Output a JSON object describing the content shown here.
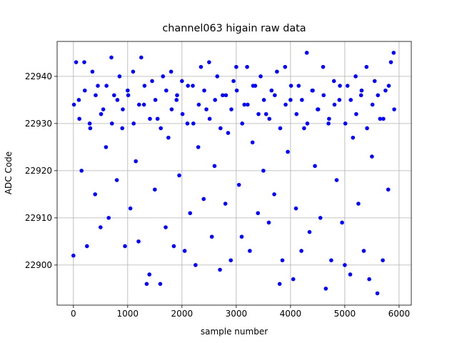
{
  "chart_data": {
    "type": "scatter",
    "title": "channel063 higain raw data",
    "x_label": "sample number",
    "y_label": "ADC Code",
    "xlim": [
      -300,
      6225
    ],
    "ylim": [
      22891.5,
      22947.4
    ],
    "xticks": [
      0,
      1000,
      2000,
      3000,
      4000,
      5000,
      6000
    ],
    "yticks": [
      22900,
      22910,
      22920,
      22930,
      22940
    ],
    "grid": true,
    "color": "#0000ff",
    "x": [
      0,
      50,
      100,
      150,
      200,
      250,
      300,
      350,
      400,
      450,
      500,
      550,
      600,
      650,
      700,
      750,
      800,
      850,
      900,
      950,
      1000,
      1050,
      1100,
      1150,
      1200,
      1250,
      1300,
      1350,
      1400,
      1450,
      1500,
      1550,
      1600,
      1650,
      1700,
      1750,
      1800,
      1850,
      1900,
      1950,
      2000,
      2050,
      2100,
      2150,
      2200,
      2250,
      2300,
      2350,
      2400,
      2450,
      2500,
      2550,
      2600,
      2650,
      2700,
      2750,
      2800,
      2850,
      2900,
      2950,
      3000,
      3050,
      3100,
      3150,
      3200,
      3250,
      3300,
      3350,
      3400,
      3450,
      3500,
      3550,
      3600,
      3650,
      3700,
      3750,
      3800,
      3850,
      3900,
      3950,
      4000,
      4050,
      4100,
      4150,
      4200,
      4250,
      4300,
      4350,
      4400,
      4450,
      4500,
      4550,
      4600,
      4650,
      4700,
      4750,
      4800,
      4850,
      4900,
      4950,
      5000,
      5050,
      5100,
      5150,
      5200,
      5250,
      5300,
      5350,
      5400,
      5450,
      5500,
      5550,
      5600,
      5650,
      5700,
      5750,
      5800,
      5850,
      5900,
      10,
      110,
      210,
      310,
      410,
      510,
      610,
      710,
      810,
      910,
      1010,
      1110,
      1210,
      1310,
      1410,
      1510,
      1610,
      1710,
      1810,
      1910,
      2010,
      2110,
      2210,
      2310,
      2410,
      2510,
      2610,
      2710,
      2810,
      2910,
      3010,
      3110,
      3210,
      3310,
      3410,
      3510,
      3610,
      3710,
      3810,
      3910,
      4010,
      4110,
      4210,
      4310,
      4410,
      4510,
      4610,
      4710,
      4810,
      4910,
      5010,
      5110,
      5210,
      5310,
      5410,
      5510,
      5610,
      5710,
      5810,
      5910
    ],
    "values": [
      22902,
      22943,
      22935,
      22920,
      22943,
      22904,
      22930,
      22941,
      22915,
      22938,
      22908,
      22933,
      22925,
      22910,
      22944,
      22936,
      22918,
      22940,
      22929,
      22904,
      22937,
      22912,
      22941,
      22922,
      22905,
      22944,
      22934,
      22896,
      22898,
      22939,
      22916,
      22931,
      22896,
      22940,
      22908,
      22927,
      22941,
      22904,
      22935,
      22919,
      22939,
      22903,
      22930,
      22911,
      22938,
      22900,
      22925,
      22942,
      22914,
      22933,
      22943,
      22906,
      22921,
      22940,
      22899,
      22936,
      22913,
      22928,
      22901,
      22939,
      22942,
      22917,
      22906,
      22934,
      22942,
      22903,
      22926,
      22938,
      22911,
      22940,
      22920,
      22932,
      22909,
      22937,
      22915,
      22941,
      22896,
      22901,
      22942,
      22924,
      22935,
      22897,
      22912,
      22938,
      22903,
      22929,
      22945,
      22907,
      22937,
      22921,
      22933,
      22910,
      22942,
      22895,
      22930,
      22901,
      22939,
      22918,
      22935,
      22909,
      22900,
      22938,
      22898,
      22927,
      22940,
      22913,
      22936,
      22903,
      22942,
      22897,
      22923,
      22939,
      22894,
      22931,
      22901,
      22937,
      22916,
      22943,
      22945,
      22934,
      22931,
      22937,
      22929,
      22936,
      22932,
      22938,
      22930,
      22935,
      22933,
      22936,
      22930,
      22934,
      22938,
      22931,
      22935,
      22929,
      22937,
      22933,
      22936,
      22932,
      22938,
      22930,
      22934,
      22937,
      22931,
      22935,
      22929,
      22936,
      22933,
      22937,
      22930,
      22934,
      22938,
      22932,
      22935,
      22931,
      22936,
      22929,
      22934,
      22938,
      22932,
      22935,
      22930,
      22937,
      22933,
      22936,
      22931,
      22934,
      22938,
      22930,
      22935,
      22932,
      22937,
      22929,
      22934,
      22936,
      22931,
      22938,
      22933
    ]
  }
}
